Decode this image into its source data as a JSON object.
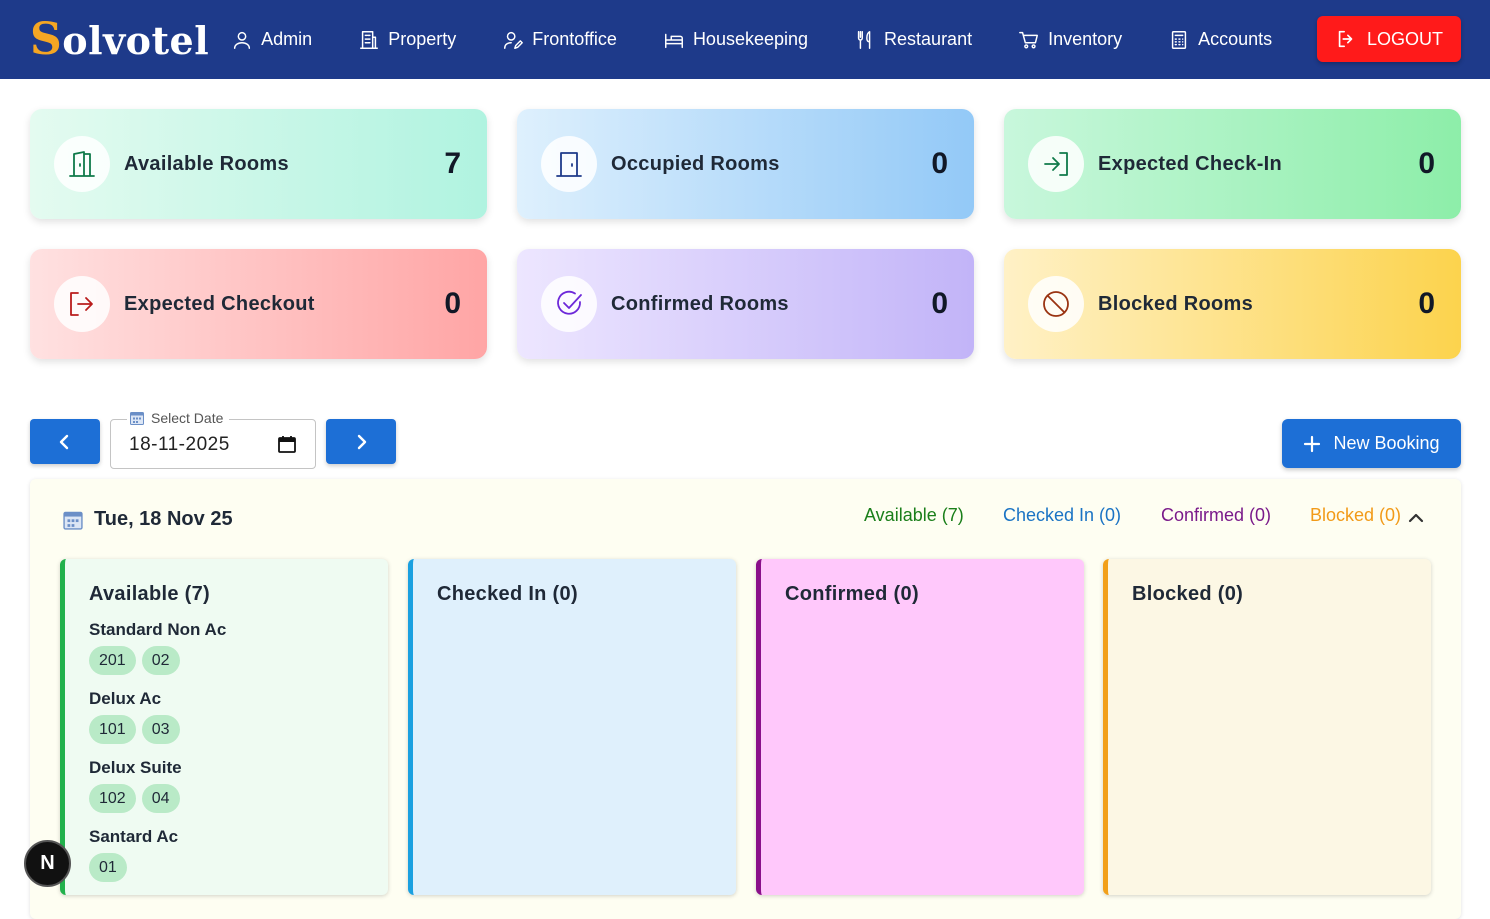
{
  "navbar": {
    "logo_initial": "S",
    "logo_rest": "olvotel",
    "items": [
      {
        "label": "Admin",
        "icon": "user-icon"
      },
      {
        "label": "Property",
        "icon": "building-icon"
      },
      {
        "label": "Frontoffice",
        "icon": "user-edit-icon"
      },
      {
        "label": "Housekeeping",
        "icon": "bed-icon"
      },
      {
        "label": "Restaurant",
        "icon": "utensils-icon"
      },
      {
        "label": "Inventory",
        "icon": "cart-icon"
      },
      {
        "label": "Accounts",
        "icon": "calculator-icon"
      }
    ],
    "logout_label": "LOGOUT"
  },
  "stats": [
    {
      "label": "Available Rooms",
      "value": "7",
      "icon": "door-open-icon",
      "color": "#0f7a4a"
    },
    {
      "label": "Occupied Rooms",
      "value": "0",
      "icon": "door-closed-icon",
      "color": "#1e3a8a"
    },
    {
      "label": "Expected Check-In",
      "value": "0",
      "icon": "sign-in-icon",
      "color": "#0f7a4a"
    },
    {
      "label": "Expected Checkout",
      "value": "0",
      "icon": "sign-out-icon",
      "color": "#b91c1c"
    },
    {
      "label": "Confirmed Rooms",
      "value": "0",
      "icon": "check-circle-icon",
      "color": "#6d28d9"
    },
    {
      "label": "Blocked Rooms",
      "value": "0",
      "icon": "block-icon",
      "color": "#9a3412"
    }
  ],
  "date_picker": {
    "label": "Select Date",
    "value": "18-11-2025"
  },
  "new_booking_label": "New Booking",
  "panel": {
    "date_heading": "Tue, 18 Nov 25",
    "filters": {
      "available": "Available (7)",
      "checked_in": "Checked In (0)",
      "confirmed": "Confirmed (0)",
      "blocked": "Blocked (0)"
    },
    "columns": {
      "available": {
        "title": "Available (7)",
        "groups": [
          {
            "name": "Standard Non Ac",
            "rooms": [
              "201",
              "02"
            ]
          },
          {
            "name": "Delux Ac",
            "rooms": [
              "101",
              "03"
            ]
          },
          {
            "name": "Delux Suite",
            "rooms": [
              "102",
              "04"
            ]
          },
          {
            "name": "Santard Ac",
            "rooms": [
              "01"
            ]
          }
        ]
      },
      "checked_in": {
        "title": "Checked In (0)"
      },
      "confirmed": {
        "title": "Confirmed (0)"
      },
      "blocked": {
        "title": "Blocked (0)"
      }
    }
  },
  "dev_badge": "N"
}
